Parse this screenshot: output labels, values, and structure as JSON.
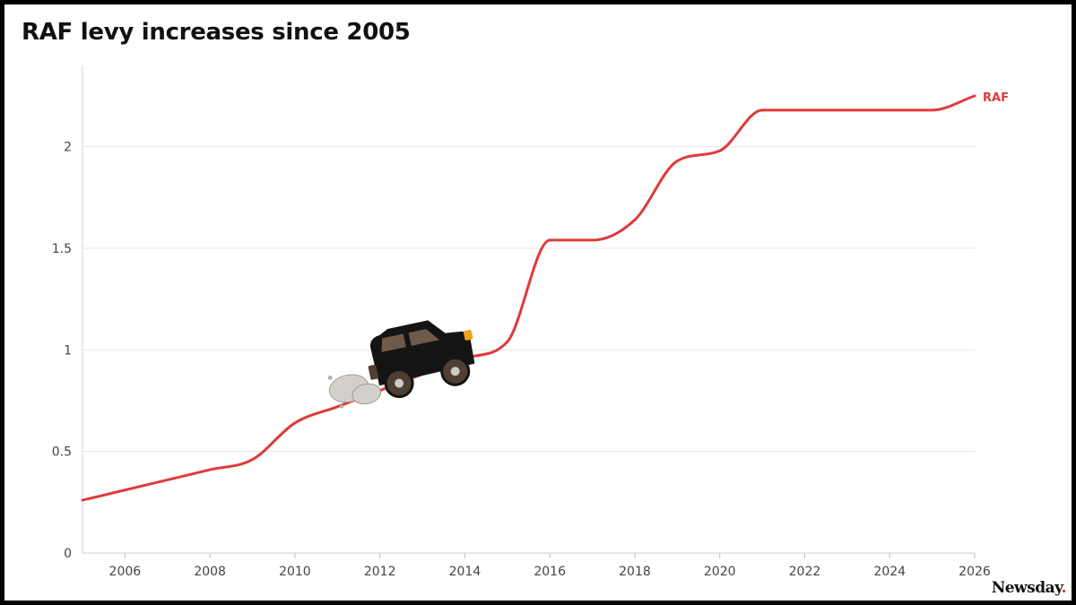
{
  "chart_data": {
    "type": "line",
    "title": "RAF levy increases since 2005",
    "xlabel": "",
    "ylabel": "",
    "xlim": [
      2005,
      2026
    ],
    "ylim": [
      0,
      2.4
    ],
    "x_ticks": [
      2006,
      2008,
      2010,
      2012,
      2014,
      2016,
      2018,
      2020,
      2022,
      2024,
      2026
    ],
    "y_ticks": [
      0,
      0.5,
      1,
      1.5,
      2
    ],
    "y_tick_labels": [
      "0",
      "0.5",
      "1",
      "1.5",
      "2"
    ],
    "grid": "horizontal",
    "legend": "none",
    "series": [
      {
        "name": "RAF",
        "color": "#e03a3a",
        "x": [
          2005,
          2006,
          2007,
          2008,
          2009,
          2010,
          2011,
          2012,
          2013,
          2014,
          2015,
          2016,
          2017,
          2018,
          2019,
          2020,
          2021,
          2022,
          2023,
          2024,
          2025,
          2026
        ],
        "values": [
          0.26,
          0.31,
          0.36,
          0.41,
          0.46,
          0.64,
          0.72,
          0.8,
          0.88,
          0.96,
          1.04,
          1.54,
          1.54,
          1.64,
          1.93,
          1.98,
          2.18,
          2.18,
          2.18,
          2.18,
          2.18,
          2.25
        ]
      }
    ],
    "annotation": {
      "type": "car-illustration",
      "near_x": 2012.5,
      "near_y": 1.0
    }
  },
  "branding": {
    "text": "Newsday",
    "dot": ".",
    "dot_color": "#d9272e"
  }
}
